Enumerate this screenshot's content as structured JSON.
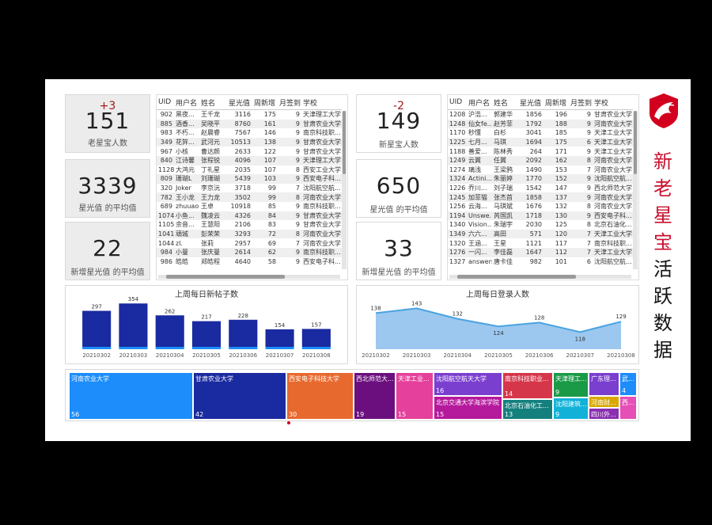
{
  "colors": {
    "red": "#c8102e",
    "navy": "#1a2aa0",
    "area": "#9cc8ef",
    "line": "#4aa3e0",
    "brand": "#d2001e"
  },
  "kpis_left": [
    {
      "delta": "+3",
      "value": "151",
      "label": "老星宝人数"
    },
    {
      "delta": "",
      "value": "3339",
      "label": "星光值 的平均值"
    },
    {
      "delta": "",
      "value": "22",
      "label": "新增星光值 的平均值"
    }
  ],
  "kpis_right": [
    {
      "delta": "-2",
      "value": "149",
      "label": "新星宝人数"
    },
    {
      "delta": "",
      "value": "650",
      "label": "星光值 的平均值"
    },
    {
      "delta": "",
      "value": "33",
      "label": "新增星光值 的平均值"
    }
  ],
  "table_headers": [
    "UID",
    "用户名",
    "姓名",
    "星光值",
    "周新增",
    "月签到",
    "学校"
  ],
  "table_left_rows": [
    [
      "902",
      "黑夜...",
      "王千龙",
      "3116",
      "175",
      "9",
      "天津理工大学"
    ],
    [
      "885",
      "酒香...",
      "吴晓平",
      "8760",
      "161",
      "9",
      "甘肃农业大学"
    ],
    [
      "983",
      "不朽...",
      "赵晨睿",
      "7567",
      "146",
      "9",
      "南京科技职..."
    ],
    [
      "349",
      "花笄...",
      "武河元",
      "10513",
      "138",
      "9",
      "甘肃农业大学"
    ],
    [
      "967",
      "小核",
      "曹达颜",
      "2633",
      "122",
      "9",
      "甘肃农业大学"
    ],
    [
      "840",
      "江诗馨",
      "张程锐",
      "4096",
      "107",
      "9",
      "天津理工大学"
    ],
    [
      "1128",
      "大鸿元",
      "丁礼星",
      "2035",
      "107",
      "8",
      "西安工业大学"
    ],
    [
      "809",
      "珊瑚L",
      "刘珊瑚",
      "5439",
      "103",
      "9",
      "西安电子科..."
    ],
    [
      "320",
      "Joker",
      "李京沅",
      "3718",
      "99",
      "7",
      "沈阳航空航..."
    ],
    [
      "782",
      "王小龙",
      "王力龙",
      "3502",
      "99",
      "8",
      "河南农业大学"
    ],
    [
      "689",
      "zhuuao",
      "王卓",
      "10918",
      "85",
      "9",
      "南京科技职..."
    ],
    [
      "1074",
      "小鱼...",
      "魏凌云",
      "4326",
      "84",
      "9",
      "甘肃农业大学"
    ],
    [
      "1105",
      "余音...",
      "王慧阳",
      "2106",
      "83",
      "9",
      "甘肃农业大学"
    ],
    [
      "1041",
      "頑城",
      "彭荣荣",
      "3293",
      "72",
      "8",
      "河南农业大学"
    ],
    [
      "1044",
      "zl.",
      "张莉",
      "2957",
      "69",
      "7",
      "河南农业大学"
    ],
    [
      "984",
      "小曼",
      "张庆曼",
      "2614",
      "62",
      "9",
      "南京科技职..."
    ],
    [
      "986",
      "皓皓",
      "郑皓程",
      "4640",
      "58",
      "9",
      "西安电子科..."
    ]
  ],
  "table_right_rows": [
    [
      "1208",
      "沪浩...",
      "郭建华",
      "1856",
      "196",
      "9",
      "甘肃农业大学"
    ],
    [
      "1248",
      "仙女fe...",
      "赵芳菲",
      "1792",
      "188",
      "9",
      "河南农业大学"
    ],
    [
      "1170",
      "秒懂",
      "白杉",
      "3041",
      "185",
      "9",
      "天津工业大学"
    ],
    [
      "1225",
      "七月...",
      "马琪",
      "1694",
      "175",
      "6",
      "天津工业大学"
    ],
    [
      "1188",
      "善爱...",
      "陈林秀",
      "264",
      "171",
      "9",
      "天津工业大学"
    ],
    [
      "1249",
      "云翼",
      "任翼",
      "2092",
      "162",
      "8",
      "河南农业大学"
    ],
    [
      "1274",
      "璃浅",
      "王梁鸦",
      "1490",
      "153",
      "7",
      "河南农业大学"
    ],
    [
      "1324",
      "Actini...",
      "朱丽婷",
      "1770",
      "152",
      "9",
      "沈阳航空航..."
    ],
    [
      "1226",
      "乔川...",
      "刘子瑞",
      "1542",
      "147",
      "9",
      "西北师范大学"
    ],
    [
      "1245",
      "加菲猫",
      "张杰首",
      "1858",
      "137",
      "9",
      "河南农业大学"
    ],
    [
      "1256",
      "云海...",
      "马琪斌",
      "1676",
      "132",
      "8",
      "河南农业大学"
    ],
    [
      "1194",
      "Unswe...",
      "芮国凯",
      "1718",
      "130",
      "9",
      "西安电子科..."
    ],
    [
      "1340",
      "Vision...",
      "朱瑞宇",
      "2030",
      "125",
      "8",
      "北京石油化..."
    ],
    [
      "1349",
      "六六...",
      "高田",
      "571",
      "120",
      "7",
      "天津工业大学"
    ],
    [
      "1320",
      "王涵...",
      "王星",
      "1121",
      "117",
      "7",
      "南京科技职..."
    ],
    [
      "1276",
      "一闪...",
      "李佳磊",
      "1647",
      "112",
      "7",
      "天津工业大学"
    ],
    [
      "1327",
      "answers",
      "唐卡佳",
      "982",
      "101",
      "6",
      "沈阳航空航..."
    ]
  ],
  "chart_data": [
    {
      "type": "bar",
      "title": "上周每日新帖子数",
      "categories": [
        "20210302",
        "20210303",
        "20210304",
        "20210305",
        "20210306",
        "20210307",
        "20210308"
      ],
      "values": [
        297,
        354,
        262,
        217,
        228,
        154,
        157
      ],
      "ylim": [
        0,
        380
      ]
    },
    {
      "type": "area",
      "title": "上周每日登录人数",
      "categories": [
        "20210302",
        "20210303",
        "20210304",
        "20210305",
        "20210306",
        "20210307",
        "20210308"
      ],
      "values": [
        138,
        143,
        132,
        124,
        128,
        118,
        129
      ],
      "ylim": [
        100,
        150
      ]
    },
    {
      "type": "treemap",
      "title": "",
      "items": [
        {
          "label": "河南农业大学",
          "value": 56,
          "color": "#1c8dfb"
        },
        {
          "label": "甘肃农业大学",
          "value": 42,
          "color": "#1a2aa0"
        },
        {
          "label": "西安电子科技大学",
          "value": 30,
          "color": "#e8692e"
        },
        {
          "label": "西北师范大...",
          "value": 19,
          "color": "#6b0f7e"
        },
        {
          "label": "天津工业...",
          "value": 15,
          "color": "#e5409b"
        },
        {
          "label": "沈阳航空航天大学",
          "value": 16,
          "color": "#7b3fd0"
        },
        {
          "label": "北京交通大学海滨学院",
          "value": 15,
          "color": "#b5199c"
        },
        {
          "label": "南京科技职业...",
          "value": 14,
          "color": "#d6364a"
        },
        {
          "label": "北京石油化工...",
          "value": 13,
          "color": "#14807e"
        },
        {
          "label": "天津理工...",
          "value": 9,
          "color": "#1a9a47"
        },
        {
          "label": "沈阳建筑...",
          "value": 9,
          "color": "#12b2d8"
        },
        {
          "label": "广东理...",
          "value": "",
          "color": "#7b3fd0"
        },
        {
          "label": "武...",
          "value": 4,
          "color": "#1c8dfb"
        },
        {
          "label": "河南财...",
          "value": "",
          "color": "#d9a800"
        },
        {
          "label": "四川外...",
          "value": "",
          "color": "#8a2fb0"
        },
        {
          "label": "西...",
          "value": "",
          "color": "#e54fb6"
        }
      ]
    }
  ],
  "title_chars": [
    "新",
    "老",
    "星",
    "宝",
    "活",
    "跃",
    "数",
    "据"
  ]
}
